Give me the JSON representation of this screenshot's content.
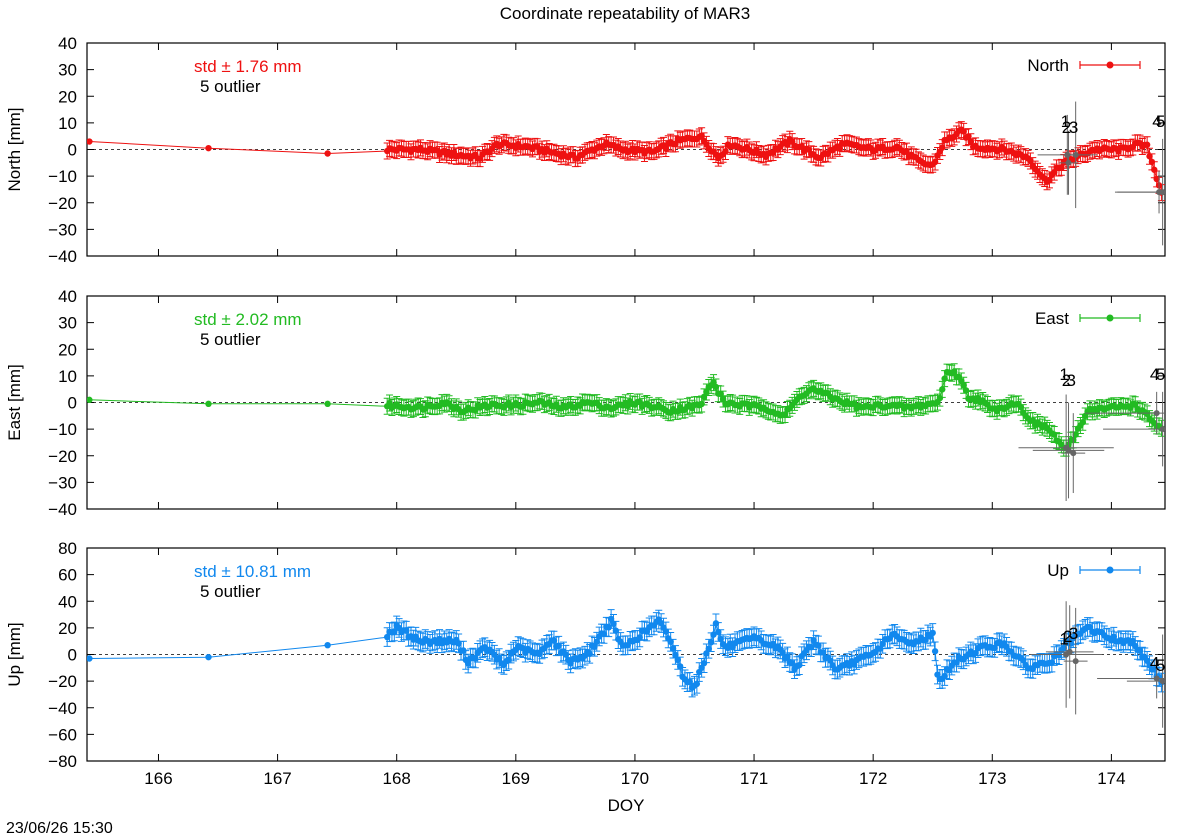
{
  "title": "Coordinate repeatability of MAR3",
  "footer_timestamp": "23/06/26 15:30",
  "chart_data": [
    {
      "type": "scatter",
      "component": "North",
      "ylabel": "North [mm]",
      "legend": "North",
      "legend_position": "top-right",
      "color": "#ee1111",
      "std_text": "std ± 1.76 mm",
      "outlier_text": "5 outlier",
      "ylim": [
        -40,
        40
      ],
      "yticks": [
        -40,
        -30,
        -20,
        -10,
        0,
        10,
        20,
        30,
        40
      ],
      "xlim": [
        165.4,
        174.45
      ],
      "zero_line": true,
      "sparse_points": [
        [
          165.42,
          3
        ],
        [
          166.42,
          0.5
        ],
        [
          167.42,
          -1.5
        ]
      ],
      "dense": {
        "x_start": 167.92,
        "x_end": 174.42,
        "knots": [
          [
            167.92,
            0
          ],
          [
            168.2,
            0
          ],
          [
            168.5,
            -2
          ],
          [
            168.7,
            -3
          ],
          [
            168.85,
            2
          ],
          [
            169.1,
            1
          ],
          [
            169.3,
            -1
          ],
          [
            169.5,
            -3
          ],
          [
            169.75,
            2
          ],
          [
            169.9,
            0
          ],
          [
            170.15,
            -1
          ],
          [
            170.35,
            3
          ],
          [
            170.55,
            5
          ],
          [
            170.7,
            -3
          ],
          [
            170.8,
            2
          ],
          [
            171.1,
            -2
          ],
          [
            171.3,
            3
          ],
          [
            171.55,
            -3
          ],
          [
            171.75,
            2
          ],
          [
            172.0,
            0
          ],
          [
            172.2,
            1
          ],
          [
            172.4,
            -5
          ],
          [
            172.5,
            -6
          ],
          [
            172.6,
            3
          ],
          [
            172.75,
            7
          ],
          [
            172.85,
            1
          ],
          [
            173.1,
            0
          ],
          [
            173.3,
            -3
          ],
          [
            173.45,
            -12
          ],
          [
            173.6,
            -5
          ],
          [
            173.75,
            -2
          ],
          [
            173.85,
            0
          ],
          [
            174.1,
            0
          ],
          [
            174.2,
            2
          ],
          [
            174.3,
            1
          ],
          [
            174.42,
            -16
          ]
        ],
        "error_bar": 3
      },
      "outliers": [
        {
          "label": "1",
          "x": 173.63,
          "y": -2,
          "xerr": 0.25,
          "yerr": 15
        },
        {
          "label": "2",
          "x": 173.64,
          "y": -5,
          "xerr": 0.08,
          "yerr": 12
        },
        {
          "label": "3",
          "x": 173.7,
          "y": -2,
          "xerr": 0.07,
          "yerr": 20
        },
        {
          "label": "4",
          "x": 174.4,
          "y": -16,
          "xerr": 0.35,
          "yerr": 8
        },
        {
          "label": "5",
          "x": 174.43,
          "y": -16,
          "xerr": 0.4,
          "yerr": 20
        }
      ]
    },
    {
      "type": "scatter",
      "component": "East",
      "ylabel": "East [mm]",
      "legend": "East",
      "legend_position": "top-right",
      "color": "#22bb22",
      "std_text": "std ± 2.02 mm",
      "outlier_text": "5 outlier",
      "ylim": [
        -40,
        40
      ],
      "yticks": [
        -40,
        -30,
        -20,
        -10,
        0,
        10,
        20,
        30,
        40
      ],
      "xlim": [
        165.4,
        174.45
      ],
      "zero_line": true,
      "sparse_points": [
        [
          165.42,
          1
        ],
        [
          166.42,
          -0.5
        ],
        [
          167.42,
          -0.5
        ]
      ],
      "dense": {
        "x_start": 167.92,
        "x_end": 174.42,
        "knots": [
          [
            167.92,
            -1
          ],
          [
            168.2,
            -2
          ],
          [
            168.4,
            0
          ],
          [
            168.55,
            -3
          ],
          [
            168.8,
            -1
          ],
          [
            169.0,
            -1
          ],
          [
            169.2,
            0
          ],
          [
            169.4,
            -2
          ],
          [
            169.6,
            0
          ],
          [
            169.8,
            -2
          ],
          [
            170.0,
            0
          ],
          [
            170.3,
            -3
          ],
          [
            170.55,
            -1
          ],
          [
            170.65,
            8
          ],
          [
            170.75,
            0
          ],
          [
            170.9,
            -1
          ],
          [
            171.1,
            -2
          ],
          [
            171.25,
            -5
          ],
          [
            171.4,
            3
          ],
          [
            171.5,
            5
          ],
          [
            171.7,
            1
          ],
          [
            171.9,
            -2
          ],
          [
            172.1,
            -1
          ],
          [
            172.3,
            -2
          ],
          [
            172.55,
            0
          ],
          [
            172.62,
            12
          ],
          [
            172.72,
            10
          ],
          [
            172.8,
            2
          ],
          [
            172.9,
            1
          ],
          [
            173.0,
            -3
          ],
          [
            173.2,
            0
          ],
          [
            173.35,
            -8
          ],
          [
            173.45,
            -9
          ],
          [
            173.62,
            -18
          ],
          [
            173.7,
            -12
          ],
          [
            173.8,
            -3
          ],
          [
            174.0,
            -2
          ],
          [
            174.2,
            -1
          ],
          [
            174.42,
            -10
          ]
        ],
        "error_bar": 3
      },
      "outliers": [
        {
          "label": "1",
          "x": 173.62,
          "y": -17,
          "xerr": 0.4,
          "yerr": 20
        },
        {
          "label": "2",
          "x": 173.64,
          "y": -18,
          "xerr": 0.3,
          "yerr": 18
        },
        {
          "label": "3",
          "x": 173.68,
          "y": -19,
          "xerr": 0.1,
          "yerr": 15
        },
        {
          "label": "4",
          "x": 174.38,
          "y": -4,
          "xerr": 0.6,
          "yerr": 8
        },
        {
          "label": "5",
          "x": 174.43,
          "y": -10,
          "xerr": 0.5,
          "yerr": 14
        }
      ]
    },
    {
      "type": "scatter",
      "component": "Up",
      "ylabel": "Up [mm]",
      "legend": "Up",
      "legend_position": "top-right",
      "color": "#1188ee",
      "std_text": "std ± 10.81 mm",
      "outlier_text": "5 outlier",
      "ylim": [
        -80,
        80
      ],
      "yticks": [
        -80,
        -60,
        -40,
        -20,
        0,
        20,
        40,
        60,
        80
      ],
      "xlim": [
        165.4,
        174.45
      ],
      "zero_line": true,
      "sparse_points": [
        [
          165.42,
          -3
        ],
        [
          166.42,
          -2
        ],
        [
          167.42,
          7
        ]
      ],
      "dense": {
        "x_start": 167.92,
        "x_end": 174.42,
        "knots": [
          [
            167.92,
            15
          ],
          [
            168.0,
            20
          ],
          [
            168.2,
            10
          ],
          [
            168.5,
            10
          ],
          [
            168.6,
            -5
          ],
          [
            168.75,
            5
          ],
          [
            168.9,
            -8
          ],
          [
            169.0,
            5
          ],
          [
            169.2,
            0
          ],
          [
            169.3,
            12
          ],
          [
            169.45,
            -5
          ],
          [
            169.6,
            0
          ],
          [
            169.8,
            25
          ],
          [
            169.9,
            5
          ],
          [
            170.05,
            15
          ],
          [
            170.2,
            25
          ],
          [
            170.3,
            10
          ],
          [
            170.4,
            -15
          ],
          [
            170.5,
            -25
          ],
          [
            170.6,
            0
          ],
          [
            170.68,
            22
          ],
          [
            170.75,
            5
          ],
          [
            171.0,
            12
          ],
          [
            171.2,
            5
          ],
          [
            171.35,
            -10
          ],
          [
            171.5,
            10
          ],
          [
            171.7,
            -12
          ],
          [
            171.85,
            -5
          ],
          [
            172.0,
            0
          ],
          [
            172.15,
            15
          ],
          [
            172.3,
            8
          ],
          [
            172.5,
            15
          ],
          [
            172.55,
            -20
          ],
          [
            172.7,
            -5
          ],
          [
            172.9,
            5
          ],
          [
            173.1,
            8
          ],
          [
            173.3,
            -10
          ],
          [
            173.5,
            -5
          ],
          [
            173.6,
            5
          ],
          [
            173.8,
            20
          ],
          [
            174.0,
            12
          ],
          [
            174.2,
            8
          ],
          [
            174.42,
            -20
          ]
        ],
        "error_bar": 7
      },
      "outliers": [
        {
          "label": "1",
          "x": 173.62,
          "y": 0,
          "xerr": 0.3,
          "yerr": 40
        },
        {
          "label": "2",
          "x": 173.65,
          "y": 2,
          "xerr": 0.2,
          "yerr": 35
        },
        {
          "label": "3",
          "x": 173.7,
          "y": -5,
          "xerr": 0.1,
          "yerr": 40
        },
        {
          "label": "4",
          "x": 174.38,
          "y": -18,
          "xerr": 0.5,
          "yerr": 15
        },
        {
          "label": "5",
          "x": 174.43,
          "y": -20,
          "xerr": 0.3,
          "yerr": 35
        }
      ]
    }
  ],
  "xaxis": {
    "label": "DOY",
    "ticks": [
      "166",
      "167",
      "168",
      "169",
      "170",
      "171",
      "172",
      "173",
      "174"
    ]
  }
}
